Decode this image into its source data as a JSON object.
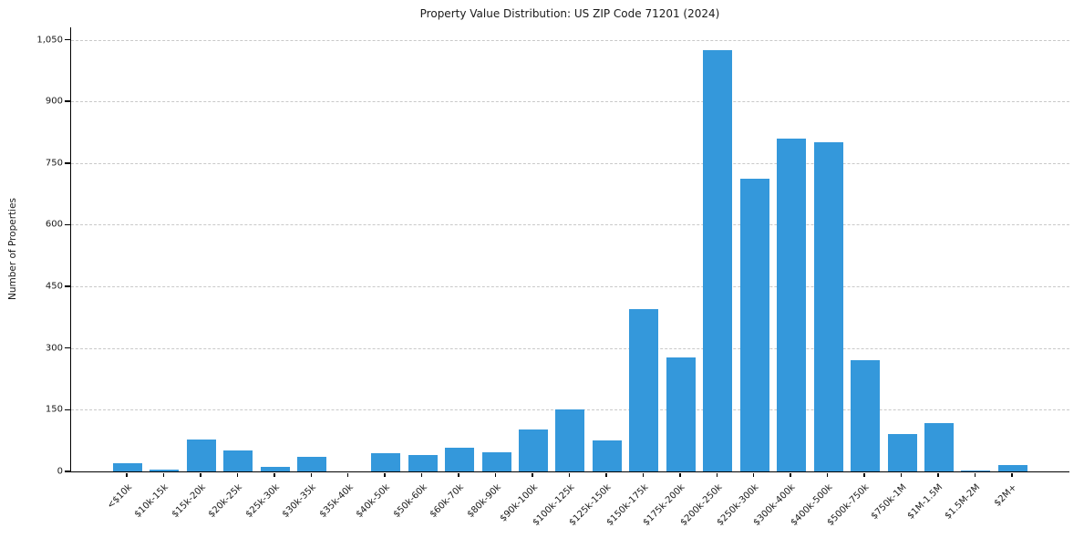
{
  "chart_data": {
    "type": "bar",
    "title": "Property Value Distribution: US ZIP Code 71201 (2024)",
    "xlabel": "",
    "ylabel": "Number of Properties",
    "categories": [
      "<$10k",
      "$10k-15k",
      "$15k-20k",
      "$20k-25k",
      "$25k-30k",
      "$30k-35k",
      "$35k-40k",
      "$40k-50k",
      "$50k-60k",
      "$60k-70k",
      "$80k-90k",
      "$90k-100k",
      "$100k-125k",
      "$125k-150k",
      "$150k-175k",
      "$175k-200k",
      "$200k-250k",
      "$250k-300k",
      "$300k-400k",
      "$400k-500k",
      "$500k-750k",
      "$750k-1M",
      "$1M-1.5M",
      "$1.5M-2M",
      "$2M+"
    ],
    "values": [
      20,
      5,
      78,
      52,
      12,
      35,
      0,
      45,
      40,
      57,
      46,
      102,
      150,
      75,
      395,
      278,
      1025,
      712,
      810,
      800,
      270,
      90,
      118,
      3,
      15
    ],
    "yticks": [
      0,
      150,
      300,
      450,
      600,
      750,
      900,
      1050
    ],
    "ytick_labels": [
      "0",
      "150",
      "300",
      "450",
      "600",
      "750",
      "900",
      "1,050"
    ],
    "ylim": [
      0,
      1080
    ],
    "grid": "horizontal dashed gridlines at y ticks",
    "legend": "none",
    "bar_color": "#3498db",
    "gridline_color": "#c9c9c9",
    "axis_color": "#000000",
    "text_color": "#1a1a1a",
    "background_color": "#ffffff"
  }
}
